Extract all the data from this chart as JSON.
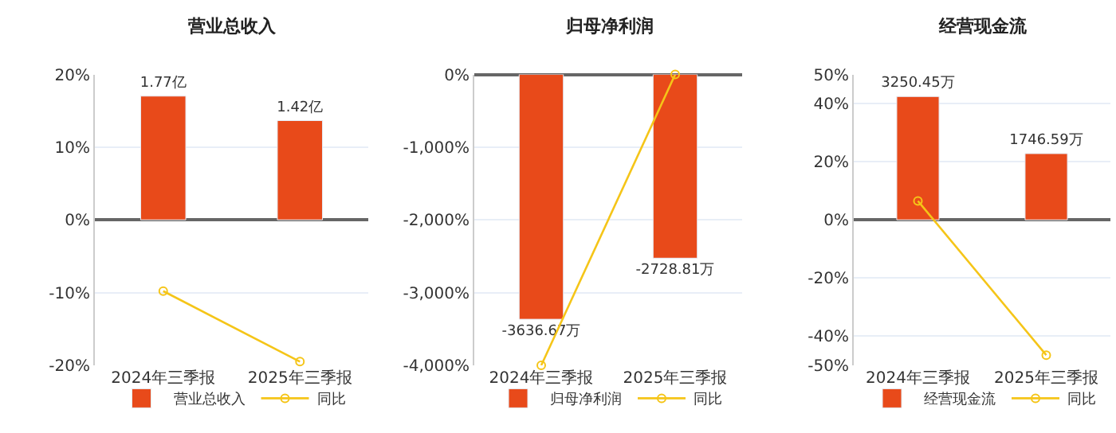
{
  "chart_data": [
    {
      "type": "bar",
      "title": "营业总收入",
      "categories": [
        "2024年三季报",
        "2025年三季报"
      ],
      "series": [
        {
          "name": "营业总收入",
          "color": "#e84a1a",
          "values": [
            1.77,
            1.42
          ],
          "value_labels": [
            "1.77亿",
            "1.42亿"
          ],
          "axis": "y2"
        },
        {
          "name": "同比",
          "type": "line",
          "color": "#f5c518",
          "values": [
            -9.8,
            -19.5
          ]
        }
      ],
      "ylim": [
        -20,
        20
      ],
      "yticks": [
        {
          "value": -20,
          "label": "-20%"
        },
        {
          "value": -10,
          "label": "-10%"
        },
        {
          "value": 0,
          "label": "0%"
        },
        {
          "value": 10,
          "label": "10%"
        },
        {
          "value": 20,
          "label": "20%"
        }
      ],
      "y2lim": [
        -2.08,
        2.08
      ],
      "grid": "y",
      "legend": "bottom",
      "marker": "circle"
    },
    {
      "type": "bar",
      "title": "归母净利润",
      "categories": [
        "2024年三季报",
        "2025年三季报"
      ],
      "series": [
        {
          "name": "归母净利润",
          "color": "#e84a1a",
          "values": [
            -3636.67,
            -2728.81
          ],
          "value_labels": [
            "-3636.67万",
            "-2728.81万"
          ],
          "axis": "y2"
        },
        {
          "name": "同比",
          "type": "line",
          "color": "#f5c518",
          "values": [
            -4000,
            0
          ]
        }
      ],
      "ylim": [
        -4000,
        0
      ],
      "yticks": [
        {
          "value": -4000,
          "label": "-4,000%"
        },
        {
          "value": -3000,
          "label": "-3,000%"
        },
        {
          "value": -2000,
          "label": "-2,000%"
        },
        {
          "value": -1000,
          "label": "-1,000%"
        },
        {
          "value": 0,
          "label": "0%"
        }
      ],
      "y2lim": [
        -4320,
        0
      ],
      "grid": "y",
      "legend": "bottom",
      "marker": "circle"
    },
    {
      "type": "bar",
      "title": "经营现金流",
      "categories": [
        "2024年三季报",
        "2025年三季报"
      ],
      "series": [
        {
          "name": "经营现金流",
          "color": "#e84a1a",
          "values": [
            3250.45,
            1746.59
          ],
          "value_labels": [
            "3250.45万",
            "1746.59万"
          ],
          "axis": "y2"
        },
        {
          "name": "同比",
          "type": "line",
          "color": "#f5c518",
          "values": [
            6.5,
            -46.5
          ]
        }
      ],
      "ylim": [
        -50,
        50
      ],
      "yticks": [
        {
          "value": -50,
          "label": "-50%"
        },
        {
          "value": -40,
          "label": "-40%"
        },
        {
          "value": -20,
          "label": "-20%"
        },
        {
          "value": 0,
          "label": "0%"
        },
        {
          "value": 20,
          "label": "20%"
        },
        {
          "value": 40,
          "label": "40%"
        },
        {
          "value": 50,
          "label": "50%"
        }
      ],
      "y2lim": [
        -3833,
        3833
      ],
      "grid": "y",
      "legend": "bottom",
      "marker": "circle"
    }
  ]
}
